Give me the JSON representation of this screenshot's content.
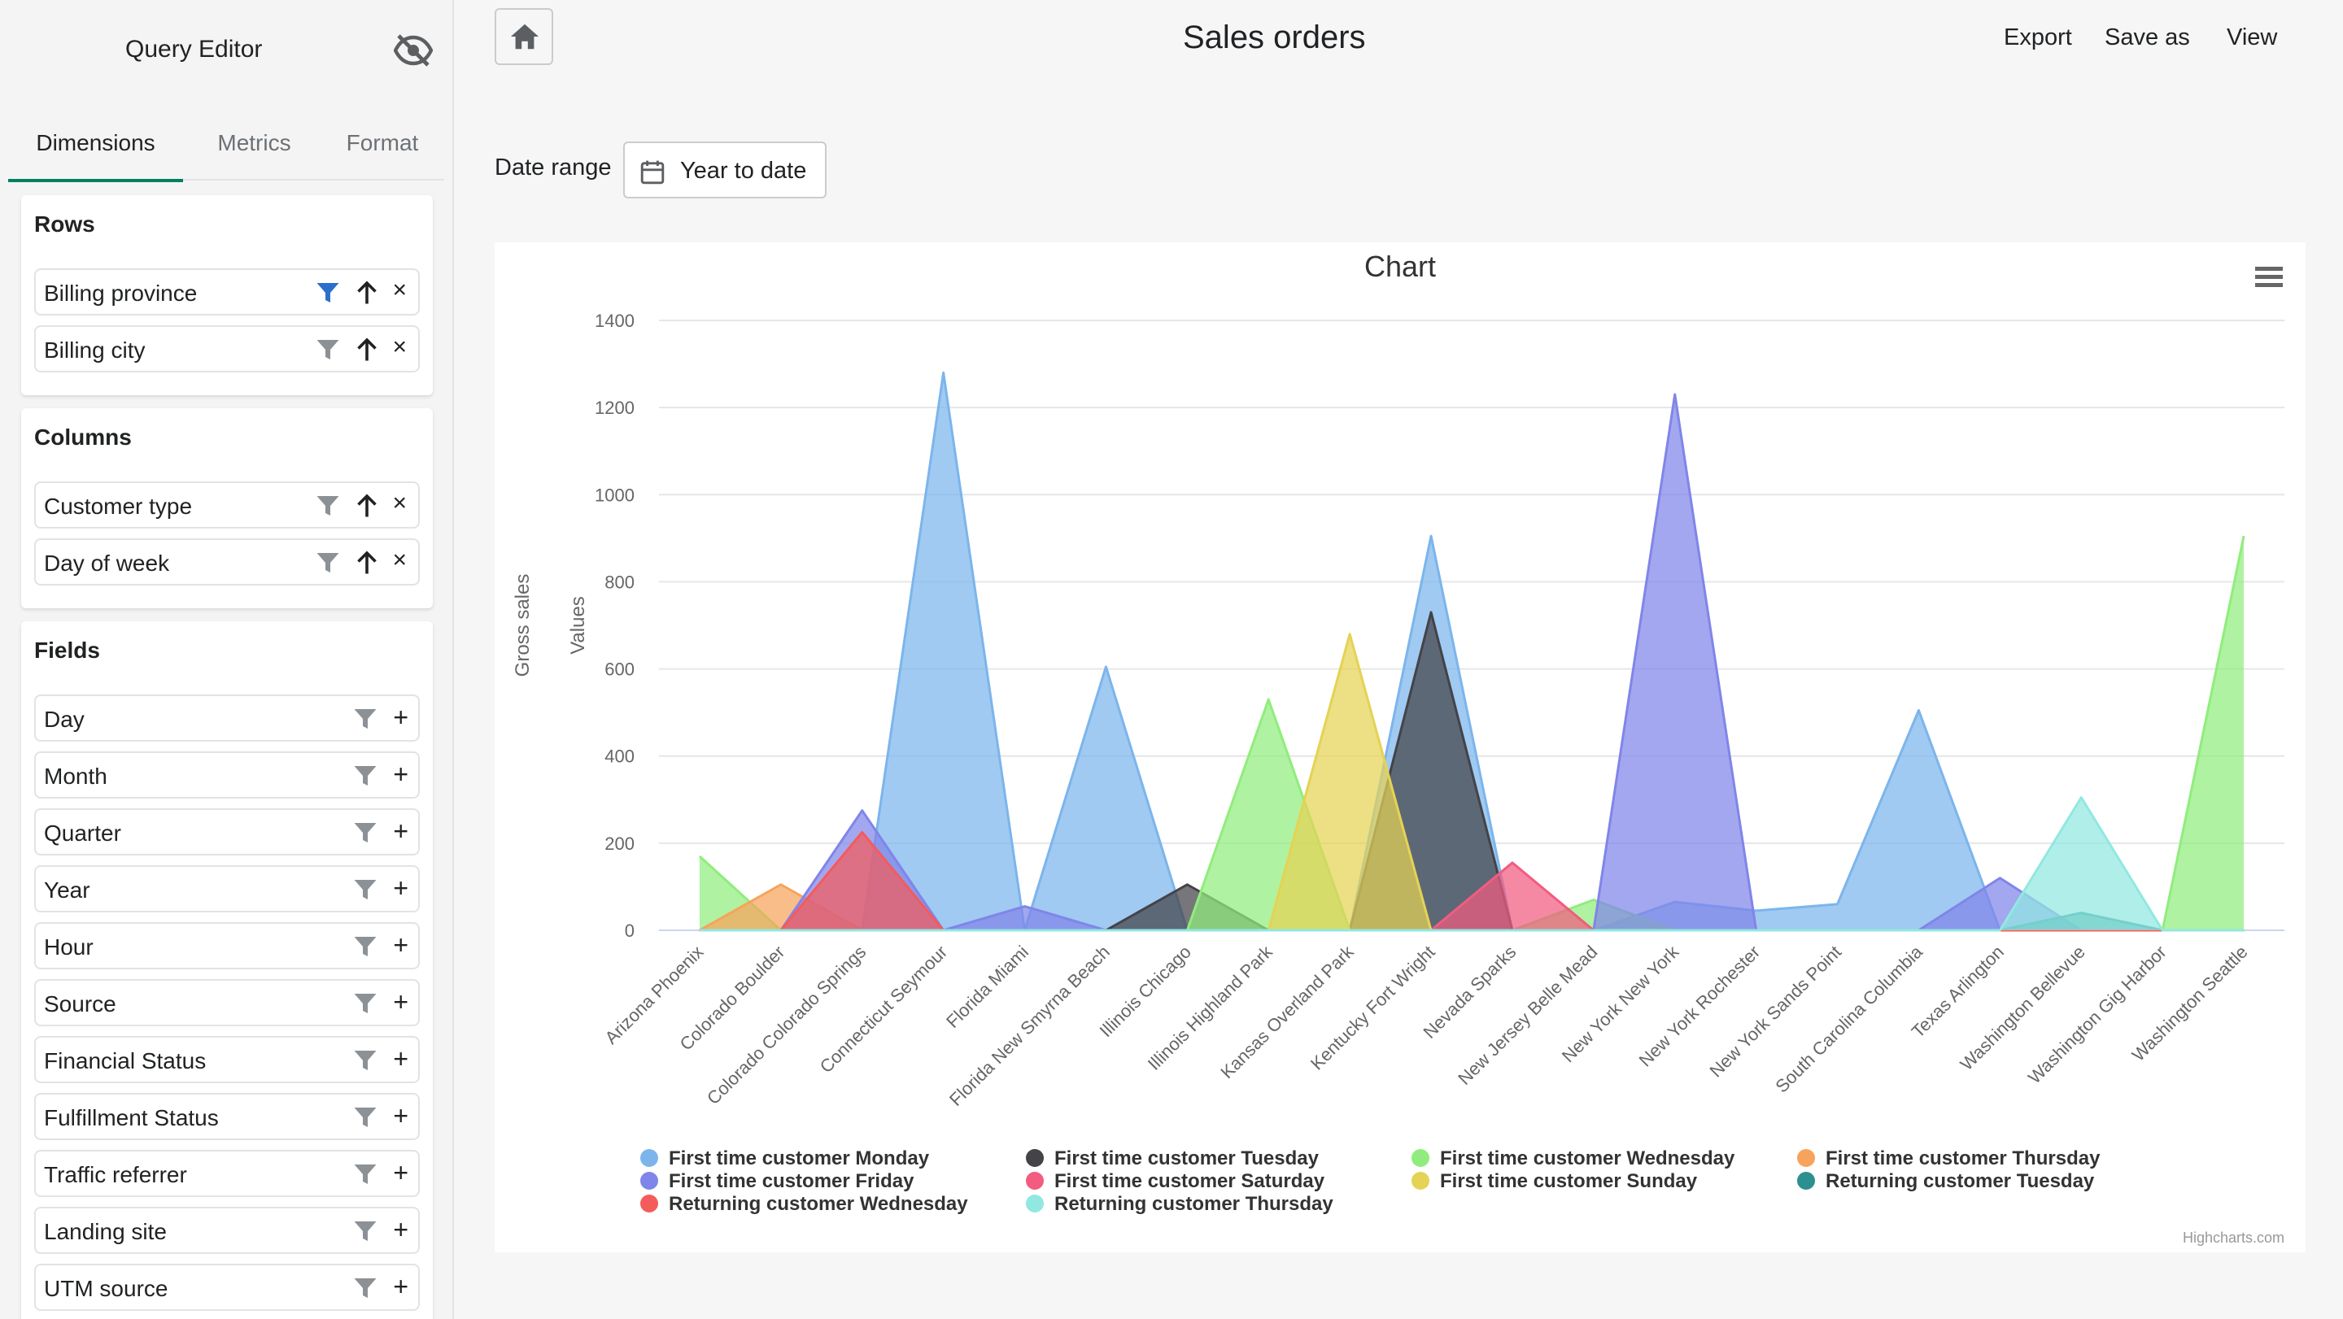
{
  "sidebar": {
    "title": "Query Editor",
    "tabs": [
      "Dimensions",
      "Metrics",
      "Format"
    ],
    "rows": {
      "title": "Rows",
      "items": [
        "Billing province",
        "Billing city"
      ]
    },
    "columns": {
      "title": "Columns",
      "items": [
        "Customer type",
        "Day of week"
      ]
    },
    "fields": {
      "title": "Fields",
      "items": [
        "Day",
        "Month",
        "Quarter",
        "Year",
        "Hour",
        "Source",
        "Financial Status",
        "Fulfillment Status",
        "Traffic referrer",
        "Landing site",
        "UTM source"
      ]
    },
    "icons": {
      "hide": "eye-slash-icon",
      "filter": "filter-icon",
      "sort": "arrow-up-icon",
      "remove": "close-icon",
      "add": "plus-icon"
    },
    "accent": "#008060",
    "active_filter_color": "#2c6ecb"
  },
  "header": {
    "title": "Sales orders",
    "actions": [
      "Export",
      "Save as",
      "View"
    ],
    "home_icon": "home-icon"
  },
  "filters": {
    "date_label": "Date range",
    "date_value": "Year to date",
    "calendar_icon": "calendar-icon"
  },
  "chart_menu_icon": "hamburger-icon",
  "credit": "Highcharts.com",
  "chart_data": {
    "type": "area",
    "title": "Chart",
    "ylabel": "Gross sales",
    "ylabel_inner": "Values",
    "ylim": [
      0,
      1400
    ],
    "yticks": [
      0,
      200,
      400,
      600,
      800,
      1000,
      1200,
      1400
    ],
    "grid": true,
    "legend_position": "bottom",
    "categories": [
      "Arizona Phoenix",
      "Colorado Boulder",
      "Colorado Colorado Springs",
      "Connecticut Seymour",
      "Florida Miami",
      "Florida New Smyrna Beach",
      "Illinois Chicago",
      "Illinois Highland Park",
      "Kansas Overland Park",
      "Kentucky Fort Wright",
      "Nevada Sparks",
      "New Jersey Belle Mead",
      "New York New York",
      "New York Rochester",
      "New York Sands Point",
      "South Carolina Columbia",
      "Texas Arlington",
      "Washington Bellevue",
      "Washington Gig Harbor",
      "Washington Seattle"
    ],
    "series": [
      {
        "name": "First time customer Monday",
        "color": "#7cb5ec",
        "values": [
          0,
          0,
          0,
          1280,
          0,
          605,
          0,
          0,
          0,
          905,
          0,
          0,
          65,
          45,
          60,
          505,
          0,
          0,
          0,
          0
        ]
      },
      {
        "name": "First time customer Tuesday",
        "color": "#434348",
        "values": [
          0,
          0,
          0,
          0,
          0,
          0,
          105,
          0,
          0,
          730,
          0,
          0,
          0,
          0,
          0,
          0,
          0,
          0,
          0,
          0
        ]
      },
      {
        "name": "First time customer Wednesday",
        "color": "#90ed7d",
        "values": [
          170,
          0,
          0,
          0,
          0,
          0,
          0,
          530,
          0,
          0,
          0,
          70,
          0,
          0,
          0,
          0,
          0,
          0,
          0,
          905
        ]
      },
      {
        "name": "First time customer Thursday",
        "color": "#f7a35c",
        "values": [
          0,
          105,
          0,
          0,
          0,
          0,
          0,
          0,
          0,
          0,
          0,
          0,
          0,
          0,
          0,
          0,
          0,
          0,
          0,
          0
        ]
      },
      {
        "name": "First time customer Friday",
        "color": "#8085e9",
        "values": [
          0,
          0,
          275,
          0,
          55,
          0,
          0,
          0,
          0,
          0,
          0,
          0,
          1230,
          0,
          0,
          0,
          120,
          0,
          0,
          0
        ]
      },
      {
        "name": "First time customer Saturday",
        "color": "#f15c80",
        "values": [
          0,
          0,
          0,
          0,
          0,
          0,
          0,
          0,
          0,
          0,
          155,
          0,
          0,
          0,
          0,
          0,
          0,
          0,
          0,
          0
        ]
      },
      {
        "name": "First time customer Sunday",
        "color": "#e4d354",
        "values": [
          0,
          0,
          0,
          0,
          0,
          0,
          0,
          0,
          680,
          0,
          0,
          0,
          0,
          0,
          0,
          0,
          0,
          0,
          0,
          0
        ]
      },
      {
        "name": "Returning customer Tuesday",
        "color": "#2b908f",
        "values": [
          0,
          0,
          0,
          0,
          0,
          0,
          0,
          0,
          0,
          0,
          0,
          0,
          0,
          0,
          0,
          0,
          0,
          40,
          0,
          0
        ]
      },
      {
        "name": "Returning customer Wednesday",
        "color": "#f45b5b",
        "values": [
          0,
          0,
          225,
          0,
          0,
          0,
          0,
          0,
          0,
          0,
          0,
          0,
          0,
          0,
          0,
          0,
          0,
          0,
          0,
          0
        ]
      },
      {
        "name": "Returning customer Thursday",
        "color": "#91e8e1",
        "values": [
          0,
          0,
          0,
          0,
          0,
          0,
          0,
          0,
          0,
          0,
          0,
          0,
          0,
          0,
          0,
          0,
          0,
          305,
          0,
          0
        ]
      }
    ]
  }
}
